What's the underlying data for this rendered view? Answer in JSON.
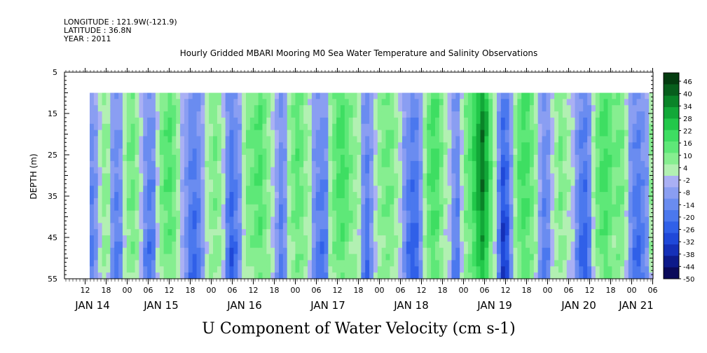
{
  "header": {
    "longitude": "LONGITUDE : 121.9W(-121.9)",
    "latitude": "LATITUDE : 36.8N",
    "year": "YEAR : 2011",
    "title": "Hourly Gridded MBARI Mooring M0 Sea Water Temperature and Salinity Observations"
  },
  "chart_data": {
    "type": "heatmap",
    "title": "Hourly Gridded MBARI Mooring M0 Sea Water Temperature and Salinity Observations",
    "xlabel": "",
    "ylabel": "DEPTH (m)",
    "bottom_title": "U Component of Water Velocity (cm s-1)",
    "y_ticks": [
      "5",
      "15",
      "25",
      "35",
      "45",
      "55"
    ],
    "ylim": [
      55,
      5
    ],
    "x_hour_ticks": [
      "12",
      "18",
      "00",
      "06",
      "12",
      "18",
      "00",
      "06",
      "12",
      "18",
      "00",
      "06",
      "12",
      "18",
      "00",
      "06",
      "12",
      "18",
      "00",
      "06",
      "12",
      "18",
      "00",
      "06",
      "12",
      "18",
      "00",
      "06"
    ],
    "x_date_labels": [
      "JAN 14",
      "JAN 15",
      "JAN 16",
      "JAN 17",
      "JAN 18",
      "JAN 19",
      "JAN 20",
      "JAN 21"
    ],
    "data_depth_range": [
      10,
      55
    ],
    "colorbar": {
      "labels": [
        "46",
        "40",
        "34",
        "28",
        "22",
        "16",
        "10",
        "4",
        "-2",
        "-8",
        "-14",
        "-20",
        "-26",
        "-32",
        "-38",
        "-44",
        "-50"
      ],
      "range": [
        -50,
        52
      ],
      "step": 6
    },
    "field_profile": [
      -10,
      -6,
      4,
      10,
      8,
      -6,
      -10,
      -8,
      6,
      12,
      14,
      10,
      2,
      -8,
      -12,
      -10,
      4,
      12,
      16,
      18,
      14,
      8,
      0,
      -6,
      -12,
      -14,
      -10,
      -4,
      6,
      10,
      12,
      10,
      4,
      -10,
      -16,
      -12,
      -6,
      6,
      12,
      14,
      16,
      18,
      14,
      10,
      4,
      -4,
      -10,
      -6,
      8,
      12,
      16,
      14,
      10,
      6,
      -6,
      -10,
      -12,
      -10,
      8,
      14,
      18,
      20,
      16,
      12,
      10,
      6,
      -8,
      -12,
      -6,
      4,
      10,
      12,
      14,
      12,
      8,
      4,
      -6,
      -12,
      -16,
      -14,
      -6,
      8,
      16,
      20,
      18,
      12,
      6,
      2,
      -8,
      -10,
      4,
      12,
      16,
      22,
      30,
      36,
      28,
      16,
      6,
      -10,
      -22,
      -18,
      -6,
      10,
      16,
      20,
      18,
      14,
      8,
      -4,
      -10,
      -8,
      2,
      8,
      12,
      10,
      6,
      2,
      -8,
      -14,
      -16,
      -10,
      6,
      14,
      18,
      20,
      16,
      12,
      14,
      12,
      6,
      -6,
      -12,
      -14,
      -10,
      -6,
      8
    ]
  }
}
